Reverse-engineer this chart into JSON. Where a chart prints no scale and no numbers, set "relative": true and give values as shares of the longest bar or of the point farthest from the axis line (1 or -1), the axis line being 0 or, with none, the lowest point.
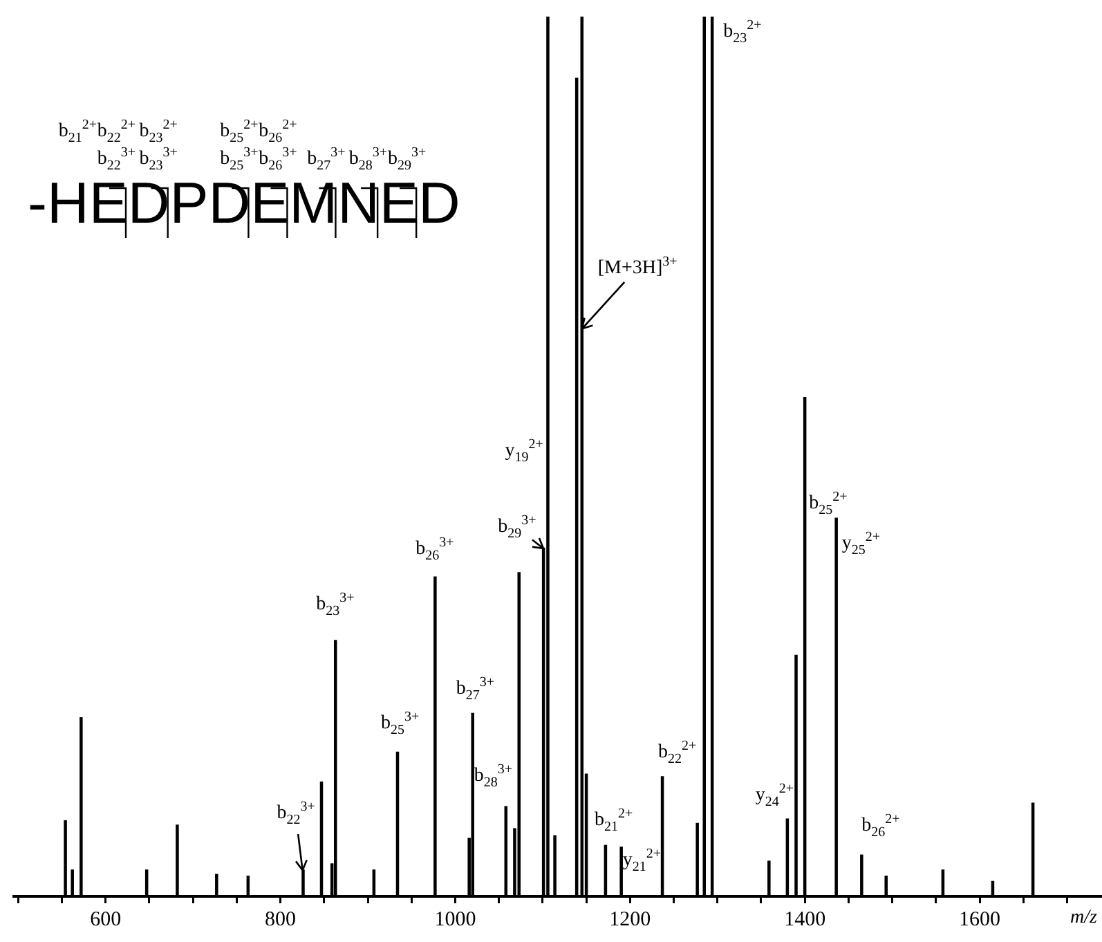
{
  "chart_data": {
    "type": "bar",
    "relative": true,
    "color": "#000000",
    "xlabel": "m/z",
    "x": [
      554,
      562,
      572,
      647,
      682,
      727,
      763,
      826,
      847,
      859,
      863,
      907,
      934,
      977,
      1016,
      1020,
      1058,
      1068,
      1073,
      1101,
      1106,
      1114,
      1139,
      1145,
      1150,
      1172,
      1190,
      1237,
      1277,
      1285,
      1294,
      1359,
      1380,
      1390,
      1400,
      1436,
      1465,
      1493,
      1558,
      1615,
      1661
    ],
    "values": [
      0.086,
      0.03,
      0.203,
      0.03,
      0.081,
      0.025,
      0.023,
      0.03,
      0.13,
      0.037,
      0.291,
      0.03,
      0.164,
      0.363,
      0.066,
      0.208,
      0.102,
      0.077,
      0.368,
      0.396,
      1,
      0.069,
      0.93,
      1,
      0.139,
      0.058,
      0.056,
      0.136,
      0.083,
      1,
      1,
      0.04,
      0.088,
      0.274,
      0.567,
      0.43,
      0.047,
      0.023,
      0.03,
      0.017,
      0.106
    ],
    "xlim": [
      495,
      1740
    ],
    "xticks": [
      {
        "value": 500,
        "label": null
      },
      {
        "value": 550,
        "label": null
      },
      600,
      {
        "value": 650,
        "label": null
      },
      {
        "value": 700,
        "label": null
      },
      {
        "value": 750,
        "label": null
      },
      800,
      {
        "value": 850,
        "label": null
      },
      {
        "value": 900,
        "label": null
      },
      {
        "value": 950,
        "label": null
      },
      1000,
      {
        "value": 1050,
        "label": null
      },
      {
        "value": 1100,
        "label": null
      },
      {
        "value": 1150,
        "label": null
      },
      1200,
      {
        "value": 1250,
        "label": null
      },
      {
        "value": 1300,
        "label": null
      },
      {
        "value": 1350,
        "label": null
      },
      1400,
      {
        "value": 1450,
        "label": null
      },
      {
        "value": 1500,
        "label": null
      },
      {
        "value": 1550,
        "label": null
      },
      1600,
      {
        "value": 1650,
        "label": null
      },
      {
        "value": 1700,
        "label": null
      }
    ],
    "annotations": [
      "b$_{21}$$^{2+}$",
      "b$_{22}$$^{2+}$",
      "b$_{23}$$^{2+}$",
      "b$_{25}$$^{2+}$",
      "b$_{26}$$^{2+}$",
      "b$_{22}$$^{3+}$",
      "b$_{23}$$^{3+}$",
      "b$_{25}$$^{3+}$",
      "b$_{26}$$^{3+}$",
      "b$_{27}$$^{3+}$",
      "b$_{28}$$^{3+}$",
      "b$_{29}$$^{3+}$",
      "-HEDPDEMNED",
      {
        "text": "b$_{22}$$^{3+}$",
        "x": 826,
        "y": 0.03
      },
      {
        "text": "b$_{23}$$^{3+}$",
        "x": 863,
        "y": 0.291
      },
      {
        "text": "b$_{25}$$^{3+}$",
        "x": 934,
        "y": 0.164
      },
      {
        "text": "b$_{26}$$^{3+}$",
        "x": 977,
        "y": 0.363
      },
      {
        "text": "b$_{27}$$^{3+}$",
        "x": 1020,
        "y": 0.208
      },
      {
        "text": "b$_{28}$$^{3+}$",
        "x": 1058,
        "y": 0.102
      },
      {
        "text": "b$_{29}$$^{3+}$",
        "x": 1101,
        "y": 0.396
      },
      {
        "text": "y$_{19}$$^{2+}$",
        "x": 1106,
        "y": 0.505
      },
      {
        "text": "[M+3H]$^{3+}$",
        "x": 1145,
        "y": 0.646
      },
      {
        "text": "b$_{23}$$^{2+}$",
        "x": 1294,
        "y": 0.99
      },
      {
        "text": "b$_{21}$$^{2+}$",
        "x": 1172,
        "y": 0.058
      },
      {
        "text": "y$_{21}$$^{2+}$",
        "x": 1190,
        "y": 0.056
      },
      {
        "text": "b$_{22}$$^{2+}$",
        "x": 1237,
        "y": 0.136
      },
      {
        "text": "y$_{24}$$^{2+}$",
        "x": 1380,
        "y": 0.088
      },
      {
        "text": "b$_{25}$$^{2+}$",
        "x": 1400,
        "y": 0.446
      },
      {
        "text": "y$_{25}$$^{2+}$",
        "x": 1436,
        "y": 0.4
      },
      {
        "text": "b$_{26}$$^{2+}$",
        "x": 1465,
        "y": 0.047
      }
    ]
  }
}
